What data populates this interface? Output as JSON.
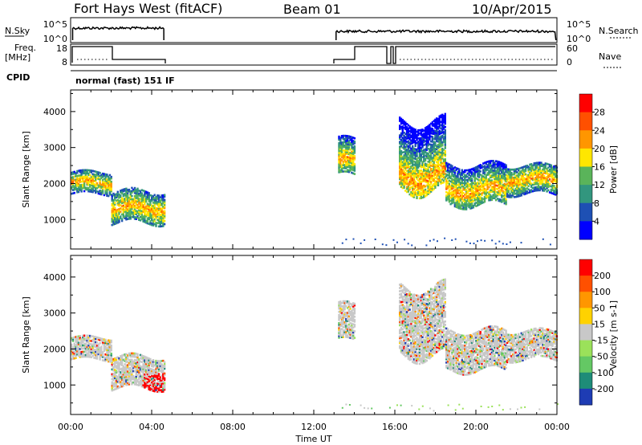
{
  "header": {
    "station": "Fort Hays West (fitACF)",
    "beam": "Beam 01",
    "date": "10/Apr/2015"
  },
  "status_panels": {
    "nsky_label": "N.Sky",
    "nsky_ticks": [
      "10^5",
      "10^0"
    ],
    "nsearch_label": "N.Search",
    "nsearch_ticks": [
      "10^5",
      "10^0"
    ],
    "freq_label": "Freq.",
    "freq_unit": "[MHz]",
    "freq_ticks": [
      "18",
      "8"
    ],
    "nave_label": "Nave",
    "nave_ticks": [
      "60",
      "0"
    ],
    "cpid_label": "CPID",
    "cpid_text": "normal (fast) 151 IF"
  },
  "chart_data": [
    {
      "type": "heatmap",
      "name": "power",
      "xlabel": "Time UT",
      "ylabel": "Slant Range [km]",
      "xlim": [
        0,
        24
      ],
      "ylim": [
        180,
        4600
      ],
      "x_ticks": [
        "00:00",
        "04:00",
        "08:00",
        "12:00",
        "16:00",
        "20:00",
        "00:00"
      ],
      "y_ticks": [
        "1000",
        "2000",
        "3000",
        "4000"
      ],
      "colorbar": {
        "label": "Power [dB]",
        "ticks": [
          "4",
          "8",
          "12",
          "16",
          "20",
          "24",
          "28"
        ],
        "colors": [
          "#0000ff",
          "#1e50b4",
          "#32967e",
          "#5ab45a",
          "#ffe600",
          "#ff9600",
          "#ff5000",
          "#ff0000"
        ]
      },
      "echo_regions": [
        {
          "t0": 0.0,
          "t1": 2.0,
          "r_low": 1700,
          "r_high": 2300,
          "core": 2000
        },
        {
          "t0": 2.0,
          "t1": 4.6,
          "r_low": 900,
          "r_high": 1800,
          "core": 1300
        },
        {
          "t0": 13.2,
          "t1": 14.0,
          "r_low": 2200,
          "r_high": 3200,
          "core": 2600
        },
        {
          "t0": 16.2,
          "t1": 18.5,
          "r_low": 1800,
          "r_high": 3700,
          "core": 2200
        },
        {
          "t0": 18.5,
          "t1": 21.5,
          "r_low": 1400,
          "r_high": 2500,
          "core": 1800
        },
        {
          "t0": 21.5,
          "t1": 24.0,
          "r_low": 1700,
          "r_high": 2500,
          "core": 2100
        }
      ]
    },
    {
      "type": "heatmap",
      "name": "velocity",
      "xlabel": "Time UT",
      "ylabel": "Slant Range [km]",
      "xlim": [
        0,
        24
      ],
      "ylim": [
        180,
        4600
      ],
      "x_ticks": [
        "00:00",
        "04:00",
        "08:00",
        "12:00",
        "16:00",
        "20:00",
        "00:00"
      ],
      "y_ticks": [
        "1000",
        "2000",
        "3000",
        "4000"
      ],
      "colorbar": {
        "label": "Velocity [m s-1]",
        "ticks": [
          "200",
          "100",
          "50",
          "15",
          "-15",
          "-50",
          "-100",
          "-200"
        ],
        "colors": [
          "#1e3cb4",
          "#1e8c78",
          "#64c864",
          "#9be15a",
          "#c8c8c8",
          "#ffd200",
          "#ff9600",
          "#ff5000",
          "#ff0000"
        ]
      },
      "echo_regions": [
        {
          "t0": 0.0,
          "t1": 2.0,
          "r_low": 1700,
          "r_high": 2300,
          "core": 2000
        },
        {
          "t0": 2.0,
          "t1": 4.6,
          "r_low": 900,
          "r_high": 1800,
          "core": 1300
        },
        {
          "t0": 13.2,
          "t1": 14.0,
          "r_low": 2200,
          "r_high": 3200,
          "core": 2600
        },
        {
          "t0": 16.2,
          "t1": 18.5,
          "r_low": 1800,
          "r_high": 3700,
          "core": 2200
        },
        {
          "t0": 18.5,
          "t1": 21.5,
          "r_low": 1400,
          "r_high": 2500,
          "core": 1800
        },
        {
          "t0": 21.5,
          "t1": 24.0,
          "r_low": 1700,
          "r_high": 2500,
          "core": 2100
        }
      ]
    }
  ]
}
